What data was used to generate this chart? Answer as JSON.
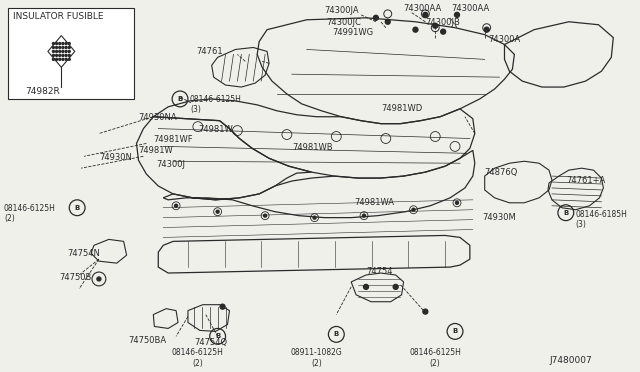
{
  "bg_color": "#f0f0eb",
  "line_color": "#2a2a2a",
  "diagram_code": "J7480007",
  "inset_label": "INSULATOR FUSIBLE",
  "inset_part": "74982R",
  "figsize": [
    6.4,
    3.72
  ],
  "dpi": 100
}
